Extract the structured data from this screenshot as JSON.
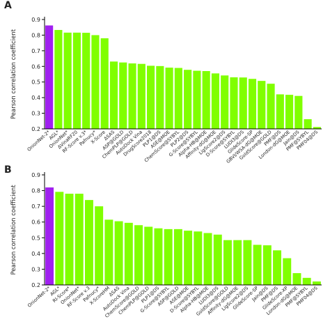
{
  "chart_data": [
    {
      "type": "bar",
      "panel": "A",
      "y_label": "Pearson correlation coefficient",
      "categories": [
        "OnionNet-2*",
        "AGL*",
        "OnionNet*",
        "ΔVinaRF20",
        "RF-Score v.3*",
        "Pafnucy*",
        "X-Score",
        "ΔSAS",
        "ASP@GOLD",
        "ChemPLP@GOLD",
        "AutoDock Vina",
        "DrugScore2018",
        "PLP1@DS",
        "ASE@MOE",
        "ChemScore@SYBYL",
        "PLP2@DS",
        "G-Score@SYBYL",
        "Alpha-HB@MOE",
        "Affinity-dG@MOE",
        "LigScore2@DS",
        "D-Score@SYBYL",
        "LUDI3@DS",
        "GlideScore-SP",
        "GBVI/WSA-dG@MOE",
        "GoldScore@GOLD",
        "PMF@DS",
        "London-dG@MOE",
        "Jain@DS",
        "PMF@SYBYL",
        "PMF04@DS"
      ],
      "values": [
        0.862,
        0.833,
        0.816,
        0.816,
        0.815,
        0.8,
        0.78,
        0.631,
        0.625,
        0.619,
        0.616,
        0.604,
        0.602,
        0.592,
        0.59,
        0.578,
        0.572,
        0.57,
        0.555,
        0.542,
        0.53,
        0.529,
        0.52,
        0.507,
        0.489,
        0.421,
        0.418,
        0.411,
        0.262,
        0.212
      ],
      "colors": [
        "#a020f0",
        "#80ff00",
        "#80ff00",
        "#80ff00",
        "#80ff00",
        "#80ff00",
        "#80ff00",
        "#80ff00",
        "#80ff00",
        "#80ff00",
        "#80ff00",
        "#80ff00",
        "#80ff00",
        "#80ff00",
        "#80ff00",
        "#80ff00",
        "#80ff00",
        "#80ff00",
        "#80ff00",
        "#80ff00",
        "#80ff00",
        "#80ff00",
        "#80ff00",
        "#80ff00",
        "#80ff00",
        "#80ff00",
        "#80ff00",
        "#80ff00",
        "#80ff00",
        "#80ff00"
      ],
      "ylim": [
        0.2,
        0.9
      ],
      "yticks": [
        0.2,
        0.3,
        0.4,
        0.5,
        0.6,
        0.7,
        0.8,
        0.9
      ]
    },
    {
      "type": "bar",
      "panel": "B",
      "y_label": "Pearson correlation coefficient",
      "categories": [
        "OnionNet-2*",
        "AGL*",
        "RI-Score*",
        "OnionNet*",
        "RF-Score v.3",
        "Pafnucy*",
        "X-ScoreHM",
        "ΔSAS",
        "AutoDock Vina",
        "ChemScore@GOLD",
        "ChemPLP@GOLD",
        "PLP1@DS",
        "G-Score@SYBYL",
        "ASP@GOLD",
        "ASE@MOE",
        "D-Score@SYBYL",
        "Alpha-HB@MOE",
        "LUDI3@DS",
        "GoldScore@GOLD",
        "Affinity-dG@MOE",
        "LigScore2@DS",
        "GlideScore-SP",
        "Jain@DS",
        "PMF@DS",
        "GlideScore-XP",
        "London-dG@MOE",
        "PMF@SYBYL",
        "PMF04@DS"
      ],
      "values": [
        0.82,
        0.792,
        0.78,
        0.78,
        0.74,
        0.7,
        0.615,
        0.605,
        0.595,
        0.58,
        0.57,
        0.56,
        0.555,
        0.555,
        0.545,
        0.54,
        0.53,
        0.52,
        0.485,
        0.485,
        0.485,
        0.455,
        0.452,
        0.42,
        0.37,
        0.275,
        0.245,
        0.222
      ],
      "colors": [
        "#a020f0",
        "#80ff00",
        "#80ff00",
        "#80ff00",
        "#80ff00",
        "#80ff00",
        "#80ff00",
        "#80ff00",
        "#80ff00",
        "#80ff00",
        "#80ff00",
        "#80ff00",
        "#80ff00",
        "#80ff00",
        "#80ff00",
        "#80ff00",
        "#80ff00",
        "#80ff00",
        "#80ff00",
        "#80ff00",
        "#80ff00",
        "#80ff00",
        "#80ff00",
        "#80ff00",
        "#80ff00",
        "#80ff00",
        "#80ff00",
        "#80ff00"
      ],
      "ylim": [
        0.2,
        0.9
      ],
      "yticks": [
        0.2,
        0.3,
        0.4,
        0.5,
        0.6,
        0.7,
        0.8,
        0.9
      ]
    }
  ]
}
